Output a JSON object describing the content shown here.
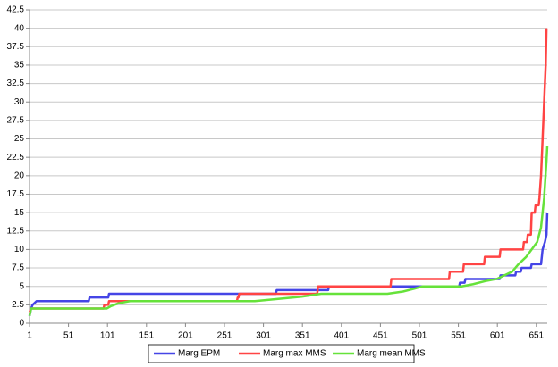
{
  "chart_data": {
    "type": "line",
    "xlim": [
      1,
      665
    ],
    "xticks": [
      1,
      51,
      101,
      151,
      201,
      251,
      301,
      351,
      401,
      451,
      501,
      551,
      601,
      651
    ],
    "ylim": [
      0,
      42.5
    ],
    "yticks": [
      0,
      2.5,
      5,
      7.5,
      10,
      12.5,
      15,
      17.5,
      20,
      22.5,
      25,
      27.5,
      30,
      32.5,
      35,
      37.5,
      40,
      42.5
    ],
    "grid": true,
    "legend": "bottom",
    "series": [
      {
        "name": "Marg EPM",
        "color": "#4545e6",
        "x": [
          1,
          3,
          5,
          10,
          77,
          78,
          102,
          103,
          317,
          318,
          384,
          385,
          552,
          553,
          559,
          560,
          604,
          605,
          624,
          625,
          631,
          632,
          644,
          645,
          657,
          659,
          662,
          664,
          665
        ],
        "values": [
          1,
          2,
          2.5,
          3,
          3,
          3.5,
          3.5,
          4,
          4,
          4.5,
          4.5,
          5,
          5,
          5.5,
          5.5,
          6,
          6,
          6.5,
          6.5,
          7,
          7,
          7.5,
          7.5,
          8,
          8,
          10,
          11,
          12,
          15
        ]
      },
      {
        "name": "Marg max MMS",
        "color": "#ff4444",
        "x": [
          1,
          3,
          96,
          97,
          102,
          103,
          267,
          268,
          269,
          270,
          370,
          371,
          464,
          465,
          539,
          540,
          557,
          558,
          584,
          585,
          604,
          605,
          634,
          635,
          639,
          640,
          644,
          645,
          649,
          650,
          654,
          655,
          657,
          659,
          661,
          663,
          664
        ],
        "values": [
          1.5,
          2,
          2,
          2.5,
          2.5,
          3,
          3,
          3.5,
          3.5,
          4,
          4,
          5,
          5,
          6,
          6,
          7,
          7,
          8,
          8,
          9,
          9,
          10,
          10,
          11,
          11,
          12,
          12,
          15,
          15,
          16,
          16,
          17,
          20,
          25,
          30,
          35,
          40
        ]
      },
      {
        "name": "Marg mean MMS",
        "color": "#66e23a",
        "x": [
          1,
          3,
          100,
          105,
          115,
          130,
          290,
          320,
          350,
          375,
          460,
          480,
          495,
          505,
          555,
          570,
          585,
          600,
          610,
          620,
          628,
          638,
          645,
          652,
          657,
          661,
          664,
          665
        ],
        "values": [
          1,
          2,
          2,
          2.3,
          2.7,
          3,
          3,
          3.3,
          3.6,
          4,
          4,
          4.3,
          4.7,
          5,
          5,
          5.3,
          5.7,
          6,
          6.5,
          7,
          8,
          9,
          10,
          11,
          13,
          17,
          22,
          24
        ]
      }
    ]
  }
}
